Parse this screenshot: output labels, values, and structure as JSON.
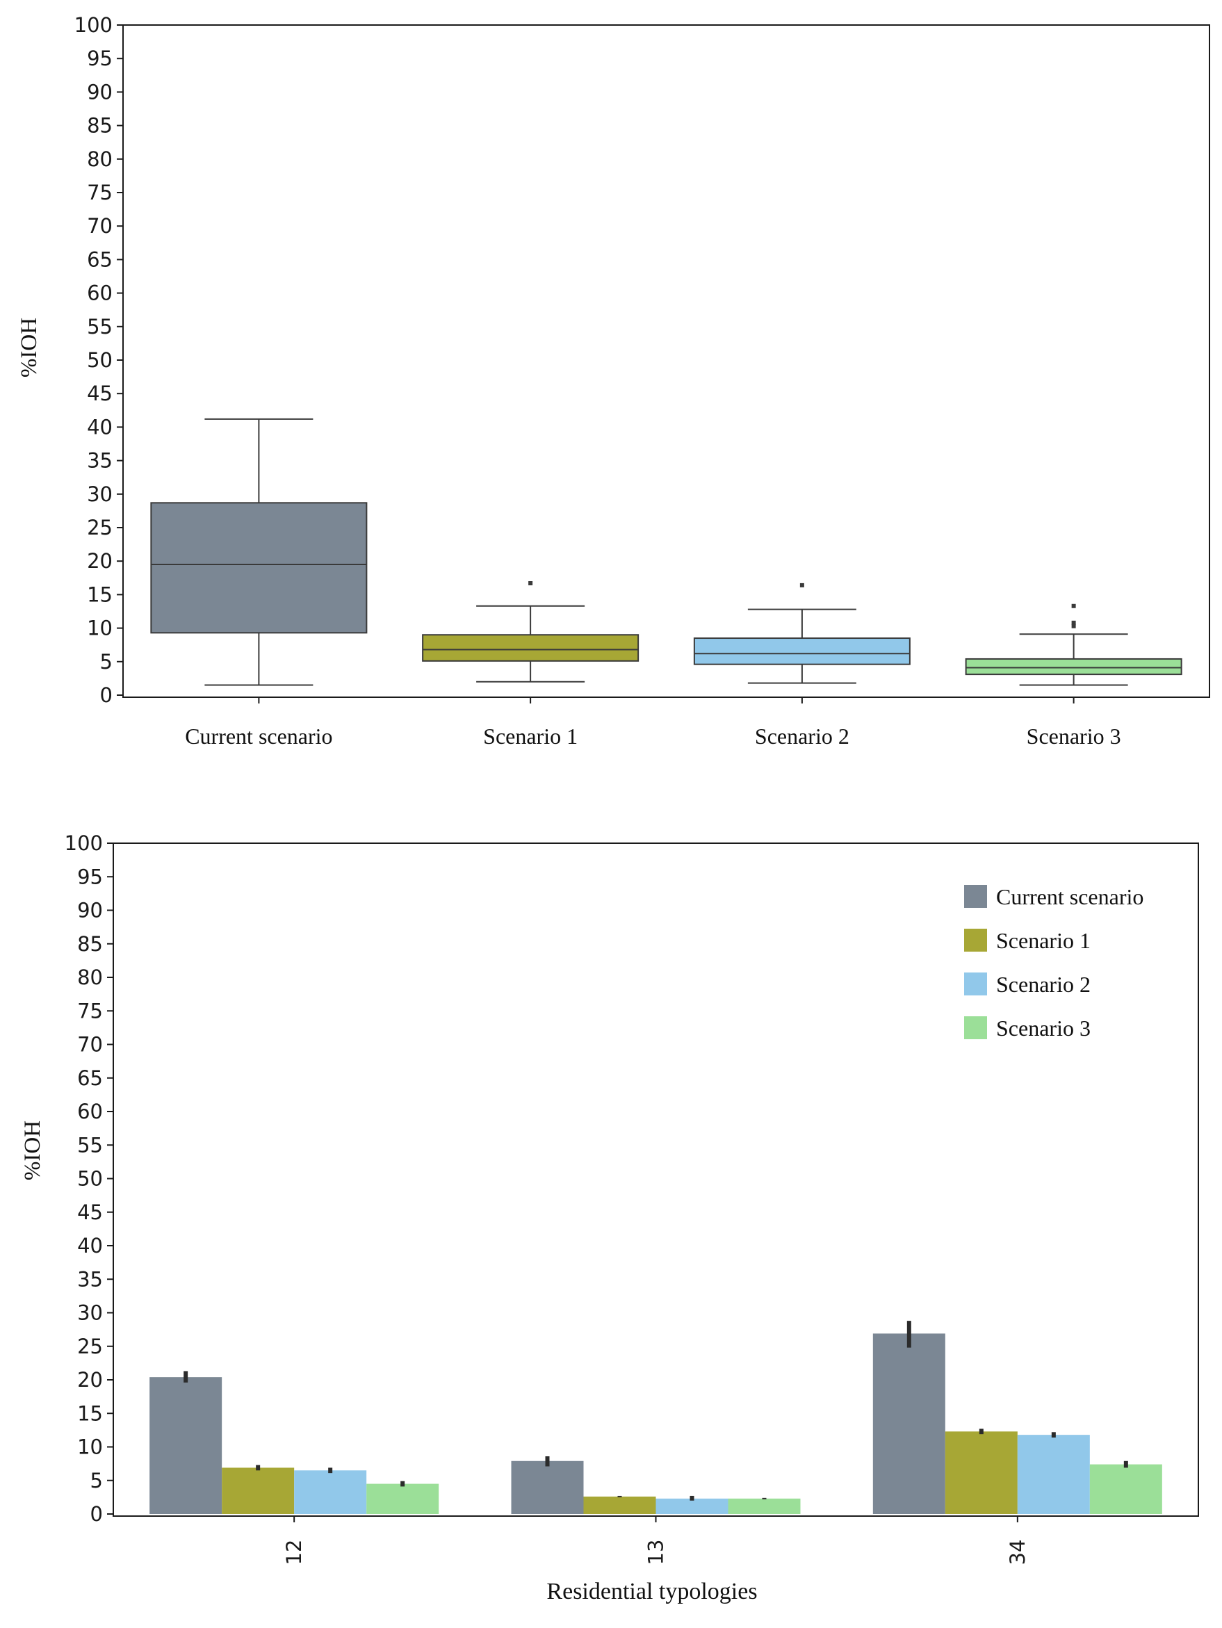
{
  "chart_data": [
    {
      "type": "box",
      "title": "",
      "xlabel": "",
      "ylabel": "%IOH",
      "ylim": [
        0,
        100
      ],
      "yticks": [
        0,
        5,
        10,
        15,
        20,
        25,
        30,
        35,
        40,
        45,
        50,
        55,
        60,
        65,
        70,
        75,
        80,
        85,
        90,
        95,
        100
      ],
      "grid": false,
      "categories": [
        "Current scenario",
        "Scenario 1",
        "Scenario 2",
        "Scenario 3"
      ],
      "boxes": [
        {
          "name": "Current scenario",
          "whisker_low": 1.5,
          "q1": 9.3,
          "median": 19.5,
          "q3": 28.7,
          "whisker_high": 41.2,
          "outliers": [],
          "color": "#7b8794"
        },
        {
          "name": "Scenario 1",
          "whisker_low": 2.0,
          "q1": 5.1,
          "median": 6.8,
          "q3": 9.0,
          "whisker_high": 13.3,
          "outliers": [
            16.7
          ],
          "color": "#a7a735"
        },
        {
          "name": "Scenario 2",
          "whisker_low": 1.8,
          "q1": 4.6,
          "median": 6.2,
          "q3": 8.5,
          "whisker_high": 12.8,
          "outliers": [
            16.4
          ],
          "color": "#91c8ea"
        },
        {
          "name": "Scenario 3",
          "whisker_low": 1.5,
          "q1": 3.1,
          "median": 4.1,
          "q3": 5.4,
          "whisker_high": 9.1,
          "outliers": [
            10.3,
            10.8,
            13.3
          ],
          "color": "#9bdf98"
        }
      ]
    },
    {
      "type": "bar",
      "title": "",
      "xlabel": "Residential typologies",
      "ylabel": "%IOH",
      "ylim": [
        0,
        100
      ],
      "yticks": [
        0,
        5,
        10,
        15,
        20,
        25,
        30,
        35,
        40,
        45,
        50,
        55,
        60,
        65,
        70,
        75,
        80,
        85,
        90,
        95,
        100
      ],
      "grid": false,
      "legend_position": "top-right",
      "categories": [
        "12",
        "13",
        "34"
      ],
      "series": [
        {
          "name": "Current scenario",
          "color": "#7b8794",
          "values": [
            20.4,
            7.9,
            26.9
          ],
          "err_low": [
            19.6,
            7.1,
            24.8
          ],
          "err_high": [
            21.3,
            8.6,
            28.8
          ]
        },
        {
          "name": "Scenario 1",
          "color": "#a7a735",
          "values": [
            6.9,
            2.6,
            12.3
          ],
          "err_low": [
            6.5,
            2.5,
            11.9
          ],
          "err_high": [
            7.3,
            2.7,
            12.7
          ]
        },
        {
          "name": "Scenario 2",
          "color": "#91c8ea",
          "values": [
            6.5,
            2.3,
            11.8
          ],
          "err_low": [
            6.1,
            2.0,
            11.4
          ],
          "err_high": [
            6.9,
            2.7,
            12.2
          ]
        },
        {
          "name": "Scenario 3",
          "color": "#9bdf98",
          "values": [
            4.5,
            2.3,
            7.4
          ],
          "err_low": [
            4.1,
            2.2,
            6.9
          ],
          "err_high": [
            4.9,
            2.4,
            7.9
          ]
        }
      ]
    }
  ]
}
